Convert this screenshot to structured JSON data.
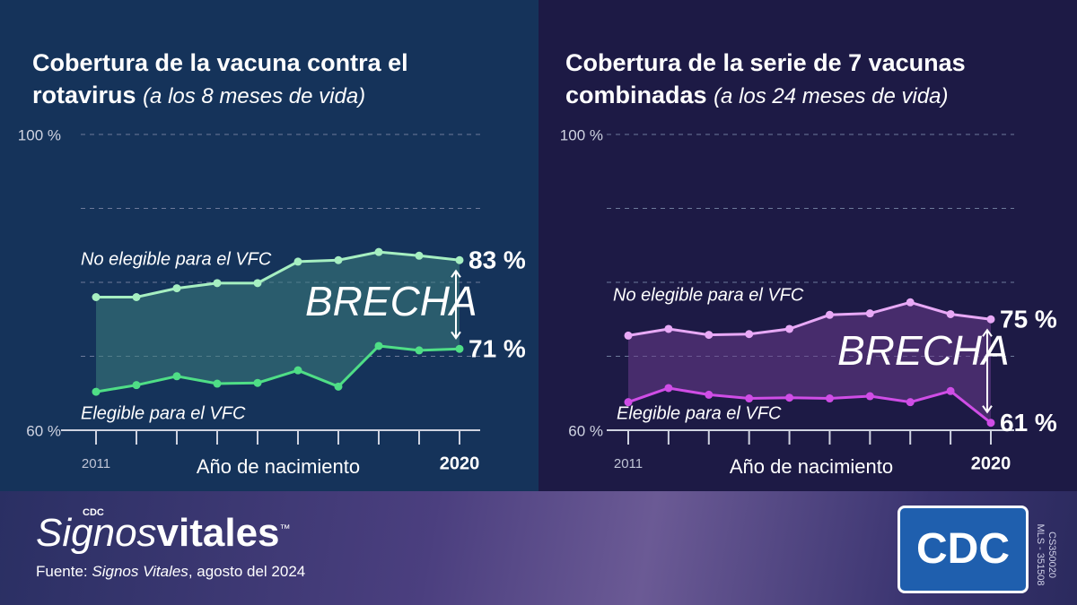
{
  "chart_data": [
    {
      "type": "line",
      "title": "Cobertura de la vacuna contra el rotavirus",
      "subtitle": "(a los 8 meses de vida)",
      "xlabel": "Año de nacimiento",
      "x": [
        2011,
        2012,
        2013,
        2014,
        2015,
        2016,
        2017,
        2018,
        2019,
        2020
      ],
      "xticks": [
        2011,
        2020
      ],
      "ylim": [
        60,
        100
      ],
      "yticks": [
        {
          "value": 60,
          "label": "60 %"
        },
        {
          "value": 100,
          "label": "100 %"
        }
      ],
      "gridlines": [
        70,
        80,
        90,
        100
      ],
      "annotation": "BRECHA",
      "area_color": "#3d7d7e",
      "series": [
        {
          "name": "No elegible para el VFC",
          "color": "#a6efc1",
          "values": [
            78,
            78,
            79.2,
            79.9,
            79.9,
            82.8,
            83,
            84.1,
            83.6,
            83
          ],
          "value_labels": [
            null,
            null,
            null,
            null,
            null,
            null,
            null,
            null,
            null,
            "83 %"
          ]
        },
        {
          "name": "Elegible para el VFC",
          "color": "#4fde86",
          "values": [
            65.2,
            66.1,
            67.3,
            66.3,
            66.4,
            68.1,
            65.9,
            71.4,
            70.8,
            71
          ],
          "value_labels": [
            null,
            null,
            null,
            null,
            null,
            null,
            null,
            null,
            null,
            "71 %"
          ]
        }
      ]
    },
    {
      "type": "line",
      "title": "Cobertura de la serie de 7 vacunas combinadas",
      "subtitle": "(a los 24 meses de vida)",
      "xlabel": "Año de nacimiento",
      "x": [
        2011,
        2012,
        2013,
        2014,
        2015,
        2016,
        2017,
        2018,
        2019,
        2020
      ],
      "xticks": [
        2011,
        2020
      ],
      "ylim": [
        60,
        100
      ],
      "yticks": [
        {
          "value": 60,
          "label": "60 %"
        },
        {
          "value": 100,
          "label": "100 %"
        }
      ],
      "gridlines": [
        70,
        80,
        90,
        100
      ],
      "annotation": "BRECHA",
      "area_color": "#6a3c8c",
      "series": [
        {
          "name": "No elegible para el VFC",
          "color": "#e8a9f6",
          "values": [
            72.8,
            73.7,
            72.9,
            73,
            73.7,
            75.6,
            75.8,
            77.3,
            75.7,
            75
          ],
          "value_labels": [
            null,
            null,
            null,
            null,
            null,
            null,
            null,
            null,
            null,
            "75 %"
          ]
        },
        {
          "name": "Elegible para el VFC",
          "color": "#cf4de6",
          "values": [
            63.8,
            65.7,
            64.8,
            64.3,
            64.4,
            64.3,
            64.6,
            63.8,
            65.3,
            61
          ],
          "value_labels": [
            null,
            null,
            null,
            null,
            null,
            null,
            null,
            null,
            null,
            "61 %"
          ]
        }
      ]
    }
  ],
  "footer": {
    "brand_small": "CDC",
    "brand_italic": "Signos",
    "brand_bold": "vitales",
    "trademark": "™",
    "source_prefix": "Fuente:",
    "source_italic": "Signos Vitales",
    "source_rest": ", agosto del 2024",
    "logo": "CDC",
    "code1": "CS350020",
    "code2": "MLS - 351508"
  }
}
